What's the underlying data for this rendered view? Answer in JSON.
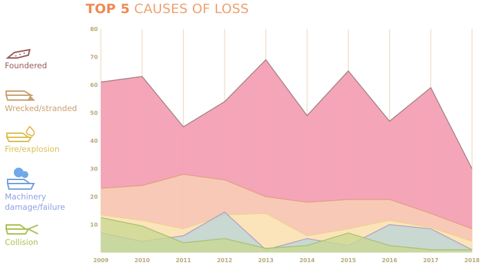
{
  "chart_data": {
    "type": "area",
    "title_bold": "TOP 5",
    "title_rest": "CAUSES OF LOSS",
    "xlabel": "",
    "ylabel": "",
    "x": [
      "2009",
      "2010",
      "2011",
      "2012",
      "2013",
      "2014",
      "2015",
      "2016",
      "2017",
      "2018"
    ],
    "ylim": [
      0,
      80
    ],
    "yticks": [
      "10",
      "20",
      "30",
      "40",
      "50",
      "60",
      "70",
      "80"
    ],
    "ytick_values": [
      10,
      20,
      30,
      40,
      50,
      60,
      70,
      80
    ],
    "grid": "vertical",
    "legend_placement": "left",
    "series": [
      {
        "name": "Foundered",
        "color": "#f4a0b4",
        "stroke": "#a08080",
        "label_color": "#9a5a5a",
        "values": [
          61,
          63,
          45,
          54,
          69,
          49,
          65,
          47,
          59,
          30
        ]
      },
      {
        "name": "Wrecked/stranded",
        "color": "#f8cab6",
        "stroke": "#e0a080",
        "label_color": "#c8a070",
        "values": [
          23,
          24,
          28,
          26,
          20,
          18,
          19,
          19,
          14,
          8.5
        ]
      },
      {
        "name": "Fire/explosion",
        "color": "#fbe6b8",
        "stroke": "#f0d090",
        "label_color": "#d8c050",
        "values": [
          13.5,
          11.5,
          8.5,
          13.5,
          14,
          6,
          8.5,
          11.5,
          9,
          4
        ]
      },
      {
        "name": "Machinery damage/failure",
        "color": "#b8d4d8",
        "stroke": "#b0a0c8",
        "label_color": "#90a0e0",
        "values": [
          7,
          4,
          6,
          14.5,
          1,
          5,
          2.5,
          10,
          8.5,
          1
        ]
      },
      {
        "name": "Collision",
        "color": "#c8d890",
        "stroke": "#a8c070",
        "label_color": "#a8c050",
        "values": [
          12.5,
          9.5,
          3.5,
          5,
          1.5,
          2.5,
          7,
          2.5,
          1,
          1
        ]
      }
    ]
  },
  "legend": {
    "items": [
      "Foundered",
      "Wrecked/stranded",
      "Fire/explosion",
      "Machinery damage/failure",
      "Collision"
    ]
  }
}
